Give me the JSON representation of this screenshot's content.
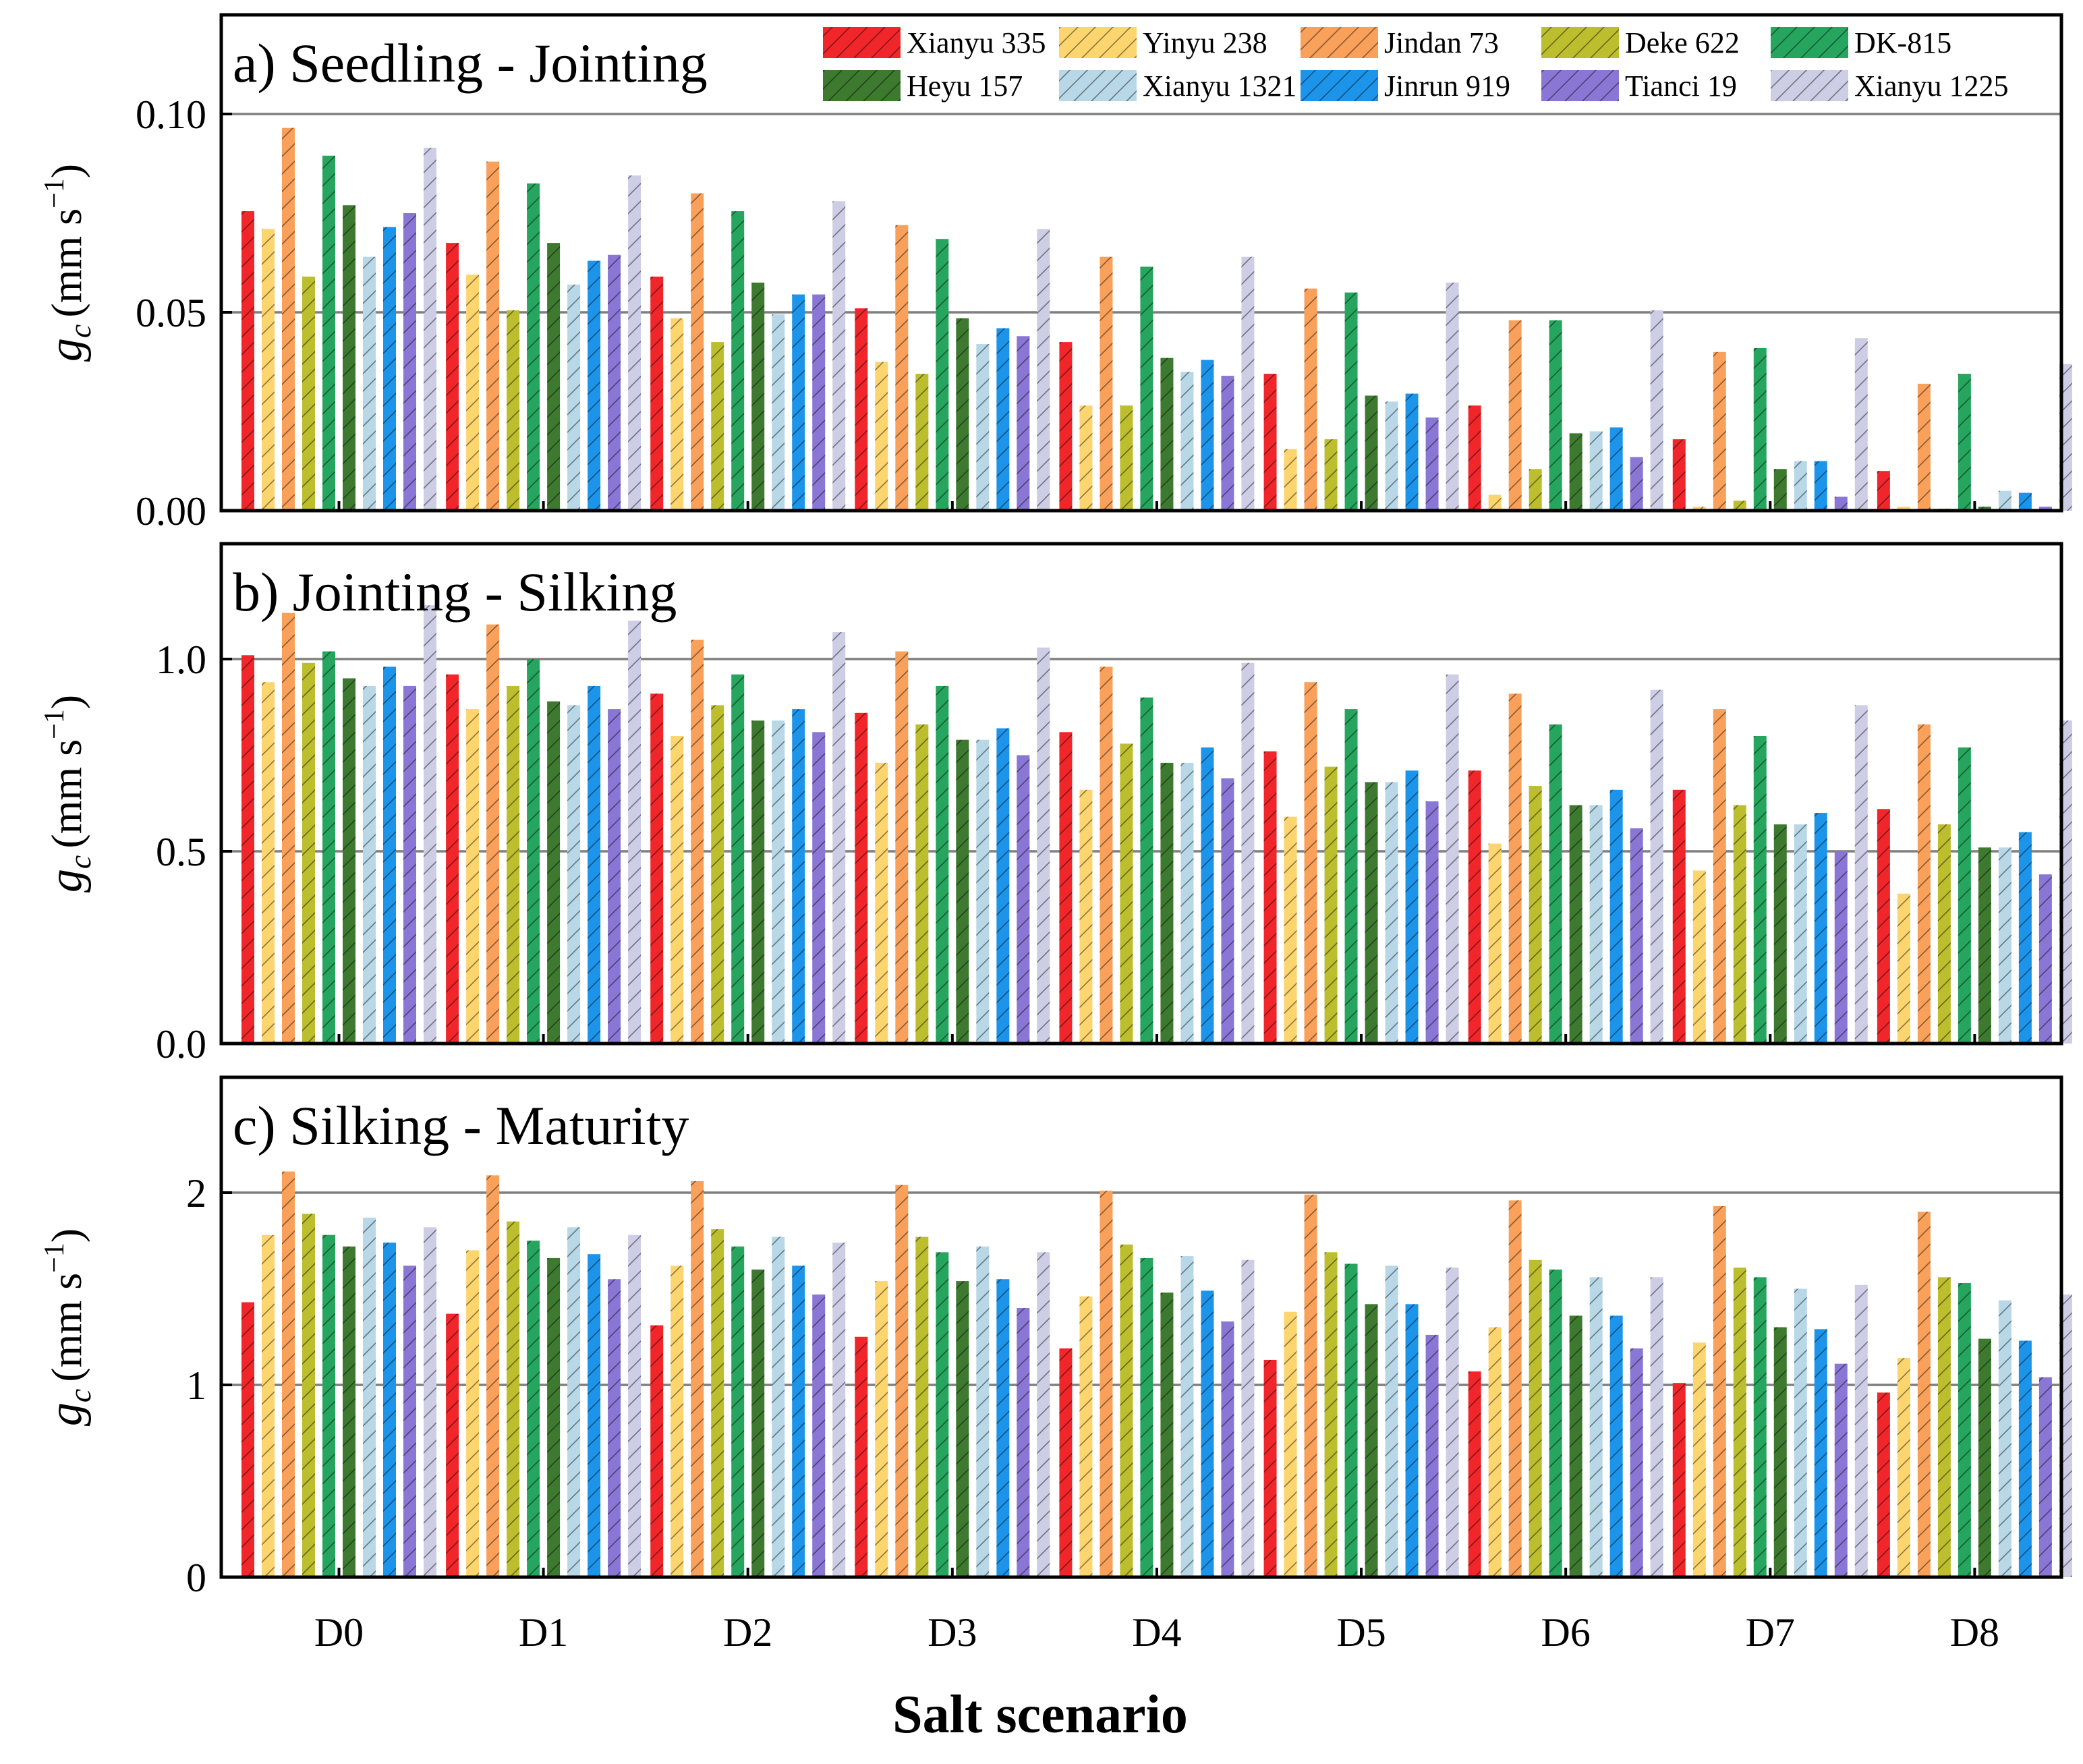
{
  "chart_data": {
    "type": "bar",
    "xlabel": "Salt scenario",
    "ylabel_main": "g",
    "ylabel_sub": "c",
    "ylabel_unit": "(mm s",
    "ylabel_exp": "−1",
    "ylabel_close": ")",
    "categories": [
      "D0",
      "D1",
      "D2",
      "D3",
      "D4",
      "D5",
      "D6",
      "D7",
      "D8"
    ],
    "legend": [
      {
        "name": "Xianyu 335",
        "color": "#f0262b"
      },
      {
        "name": "Yinyu 238",
        "color": "#fdd56e"
      },
      {
        "name": "Jindan 73",
        "color": "#f9a15a"
      },
      {
        "name": "Deke 622",
        "color": "#bcbe2e"
      },
      {
        "name": "DK-815",
        "color": "#26a55e"
      },
      {
        "name": "Heyu 157",
        "color": "#3d7a30"
      },
      {
        "name": "Xianyu 1321",
        "color": "#b8d8e8"
      },
      {
        "name": "Jinrun 919",
        "color": "#1c94ea"
      },
      {
        "name": "Tianci 19",
        "color": "#8a76d4"
      },
      {
        "name": "Xianyu 1225",
        "color": "#cdcde6"
      }
    ],
    "series_order": [
      "Xianyu 335",
      "Yinyu 238",
      "Jindan 73",
      "Deke 622",
      "DK-815",
      "Heyu 157",
      "Xianyu 1321",
      "Jinrun 919",
      "Tianci 19",
      "Xianyu 1225"
    ],
    "panels": [
      {
        "title": "a) Seedling - Jointing",
        "ylim": [
          0,
          0.125
        ],
        "yticks": [
          0.0,
          0.05,
          0.1
        ],
        "ytick_labels": [
          "0.00",
          "0.05",
          "0.10"
        ],
        "gridlines": [
          0.05,
          0.1
        ],
        "show_legend": true,
        "series": [
          {
            "name": "Xianyu 335",
            "values": [
              0.0755,
              0.0675,
              0.059,
              0.051,
              0.0425,
              0.0345,
              0.0265,
              0.018,
              0.01
            ]
          },
          {
            "name": "Yinyu 238",
            "values": [
              0.071,
              0.0595,
              0.0485,
              0.0375,
              0.0265,
              0.0155,
              0.004,
              0.001,
              0.001
            ]
          },
          {
            "name": "Jindan 73",
            "values": [
              0.0965,
              0.088,
              0.08,
              0.072,
              0.064,
              0.056,
              0.048,
              0.04,
              0.032
            ]
          },
          {
            "name": "Deke 622",
            "values": [
              0.059,
              0.0505,
              0.0425,
              0.0345,
              0.0265,
              0.018,
              0.0105,
              0.0025,
              0.0005
            ]
          },
          {
            "name": "DK-815",
            "values": [
              0.0895,
              0.0825,
              0.0755,
              0.0685,
              0.0615,
              0.055,
              0.048,
              0.041,
              0.0345
            ]
          },
          {
            "name": "Heyu 157",
            "values": [
              0.077,
              0.0675,
              0.0575,
              0.0485,
              0.0385,
              0.029,
              0.0195,
              0.0105,
              0.001
            ]
          },
          {
            "name": "Xianyu 1321",
            "values": [
              0.064,
              0.057,
              0.0495,
              0.042,
              0.035,
              0.0275,
              0.02,
              0.0125,
              0.005
            ]
          },
          {
            "name": "Jinrun 919",
            "values": [
              0.0715,
              0.063,
              0.0545,
              0.046,
              0.038,
              0.0295,
              0.021,
              0.0125,
              0.0045
            ]
          },
          {
            "name": "Tianci 19",
            "values": [
              0.075,
              0.0645,
              0.0545,
              0.044,
              0.034,
              0.0235,
              0.0135,
              0.0035,
              0.001
            ]
          },
          {
            "name": "Xianyu 1225",
            "values": [
              0.0915,
              0.0845,
              0.078,
              0.071,
              0.064,
              0.0575,
              0.0505,
              0.0435,
              0.037
            ]
          }
        ]
      },
      {
        "title": "b) Jointing - Silking",
        "ylim": [
          0,
          1.3
        ],
        "yticks": [
          0.0,
          0.5,
          1.0
        ],
        "ytick_labels": [
          "0.0",
          "0.5",
          "1.0"
        ],
        "gridlines": [
          0.5,
          1.0
        ],
        "show_legend": false,
        "series": [
          {
            "name": "Xianyu 335",
            "values": [
              1.01,
              0.96,
              0.91,
              0.86,
              0.81,
              0.76,
              0.71,
              0.66,
              0.61
            ]
          },
          {
            "name": "Yinyu 238",
            "values": [
              0.94,
              0.87,
              0.8,
              0.73,
              0.66,
              0.59,
              0.52,
              0.45,
              0.39
            ]
          },
          {
            "name": "Jindan 73",
            "values": [
              1.12,
              1.09,
              1.05,
              1.02,
              0.98,
              0.94,
              0.91,
              0.87,
              0.83
            ]
          },
          {
            "name": "Deke 622",
            "values": [
              0.99,
              0.93,
              0.88,
              0.83,
              0.78,
              0.72,
              0.67,
              0.62,
              0.57
            ]
          },
          {
            "name": "DK-815",
            "values": [
              1.02,
              1.0,
              0.96,
              0.93,
              0.9,
              0.87,
              0.83,
              0.8,
              0.77
            ]
          },
          {
            "name": "Heyu 157",
            "values": [
              0.95,
              0.89,
              0.84,
              0.79,
              0.73,
              0.68,
              0.62,
              0.57,
              0.51
            ]
          },
          {
            "name": "Xianyu 1321",
            "values": [
              0.93,
              0.88,
              0.84,
              0.79,
              0.73,
              0.68,
              0.62,
              0.57,
              0.51
            ]
          },
          {
            "name": "Jinrun 919",
            "values": [
              0.98,
              0.93,
              0.87,
              0.82,
              0.77,
              0.71,
              0.66,
              0.6,
              0.55
            ]
          },
          {
            "name": "Tianci 19",
            "values": [
              0.93,
              0.87,
              0.81,
              0.75,
              0.69,
              0.63,
              0.56,
              0.5,
              0.44
            ]
          },
          {
            "name": "Xianyu 1225",
            "values": [
              1.14,
              1.1,
              1.07,
              1.03,
              0.99,
              0.96,
              0.92,
              0.88,
              0.84
            ]
          }
        ]
      },
      {
        "title": "c) Silking - Maturity",
        "ylim": [
          0,
          2.6
        ],
        "yticks": [
          0,
          1,
          2
        ],
        "ytick_labels": [
          "0",
          "1",
          "2"
        ],
        "gridlines": [
          1,
          2
        ],
        "show_legend": false,
        "series": [
          {
            "name": "Xianyu 335",
            "values": [
              1.43,
              1.37,
              1.31,
              1.25,
              1.19,
              1.13,
              1.07,
              1.01,
              0.96
            ]
          },
          {
            "name": "Yinyu 238",
            "values": [
              1.78,
              1.7,
              1.62,
              1.54,
              1.46,
              1.38,
              1.3,
              1.22,
              1.14
            ]
          },
          {
            "name": "Jindan 73",
            "values": [
              2.11,
              2.09,
              2.06,
              2.04,
              2.01,
              1.99,
              1.96,
              1.93,
              1.9
            ]
          },
          {
            "name": "Deke 622",
            "values": [
              1.89,
              1.85,
              1.81,
              1.77,
              1.73,
              1.69,
              1.65,
              1.61,
              1.56
            ]
          },
          {
            "name": "DK-815",
            "values": [
              1.78,
              1.75,
              1.72,
              1.69,
              1.66,
              1.63,
              1.6,
              1.56,
              1.53
            ]
          },
          {
            "name": "Heyu 157",
            "values": [
              1.72,
              1.66,
              1.6,
              1.54,
              1.48,
              1.42,
              1.36,
              1.3,
              1.24
            ]
          },
          {
            "name": "Xianyu 1321",
            "values": [
              1.87,
              1.82,
              1.77,
              1.72,
              1.67,
              1.62,
              1.56,
              1.5,
              1.44
            ]
          },
          {
            "name": "Jinrun 919",
            "values": [
              1.74,
              1.68,
              1.62,
              1.55,
              1.49,
              1.42,
              1.36,
              1.29,
              1.23
            ]
          },
          {
            "name": "Tianci 19",
            "values": [
              1.62,
              1.55,
              1.47,
              1.4,
              1.33,
              1.26,
              1.19,
              1.11,
              1.04
            ]
          },
          {
            "name": "Xianyu 1225",
            "values": [
              1.82,
              1.78,
              1.74,
              1.69,
              1.65,
              1.61,
              1.56,
              1.52,
              1.47
            ]
          }
        ]
      }
    ]
  }
}
